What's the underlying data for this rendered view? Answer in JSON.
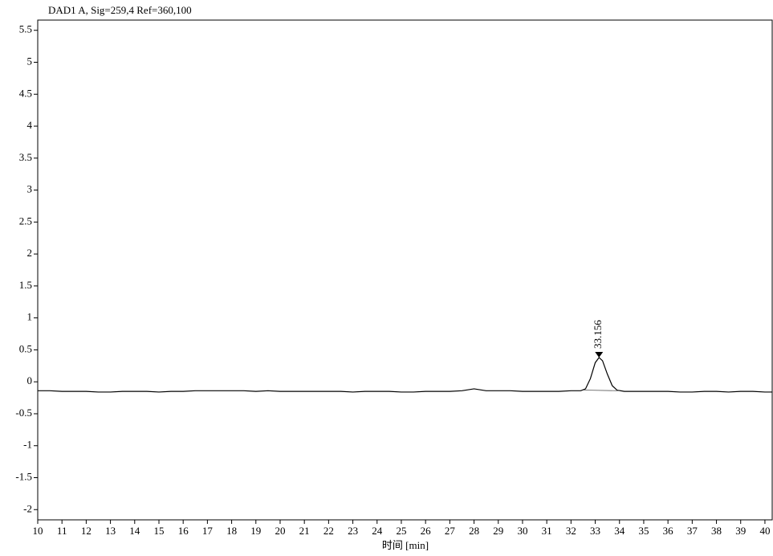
{
  "chart_data": {
    "type": "line",
    "title": "DAD1 A, Sig=259,4 Ref=360,100",
    "x_label": "时间 [min]",
    "x": [
      10,
      10.5,
      11,
      11.5,
      12,
      12.5,
      13,
      13.5,
      14,
      14.5,
      15,
      15.5,
      16,
      16.5,
      17,
      17.5,
      18,
      18.5,
      19,
      19.5,
      20,
      20.5,
      21,
      21.5,
      22,
      22.5,
      23,
      23.5,
      24,
      24.5,
      25,
      25.5,
      26,
      26.5,
      27,
      27.5,
      28,
      28.5,
      29,
      29.5,
      30,
      30.5,
      31,
      31.5,
      32,
      32.4,
      32.6,
      32.8,
      33,
      33.156,
      33.3,
      33.5,
      33.7,
      33.9,
      34.2,
      34.5,
      35,
      35.5,
      36,
      36.5,
      37,
      37.5,
      38,
      38.5,
      39,
      39.5,
      40,
      40.3
    ],
    "values": [
      -0.14,
      -0.14,
      -0.15,
      -0.15,
      -0.15,
      -0.16,
      -0.16,
      -0.15,
      -0.15,
      -0.15,
      -0.16,
      -0.15,
      -0.15,
      -0.14,
      -0.14,
      -0.14,
      -0.14,
      -0.14,
      -0.15,
      -0.14,
      -0.15,
      -0.15,
      -0.15,
      -0.15,
      -0.15,
      -0.15,
      -0.16,
      -0.15,
      -0.15,
      -0.15,
      -0.16,
      -0.16,
      -0.15,
      -0.15,
      -0.15,
      -0.14,
      -0.11,
      -0.14,
      -0.14,
      -0.14,
      -0.15,
      -0.15,
      -0.15,
      -0.15,
      -0.14,
      -0.14,
      -0.11,
      0.05,
      0.3,
      0.38,
      0.33,
      0.12,
      -0.06,
      -0.13,
      -0.15,
      -0.15,
      -0.15,
      -0.15,
      -0.15,
      -0.16,
      -0.16,
      -0.15,
      -0.15,
      -0.16,
      -0.15,
      -0.15,
      -0.16,
      -0.16
    ],
    "color": "#000000",
    "peak_baseline": {
      "x": [
        32.5,
        34
      ],
      "values": [
        -0.13,
        -0.14
      ]
    },
    "annotations": [
      {
        "x": 33.156,
        "y": 0.38,
        "text": "33.156"
      }
    ],
    "xlim": [
      10,
      40.3
    ],
    "xticks": [
      10,
      11,
      12,
      13,
      14,
      15,
      16,
      17,
      18,
      19,
      20,
      21,
      22,
      23,
      24,
      25,
      26,
      27,
      28,
      29,
      30,
      31,
      32,
      33,
      34,
      35,
      36,
      37,
      38,
      39,
      40
    ],
    "ylim": [
      -2.16,
      5.66
    ],
    "yticks": [
      5.5,
      5,
      4.5,
      4,
      3.5,
      3,
      2.5,
      2,
      1.5,
      1,
      0.5,
      0,
      -0.5,
      -1,
      -1.5,
      -2
    ]
  }
}
